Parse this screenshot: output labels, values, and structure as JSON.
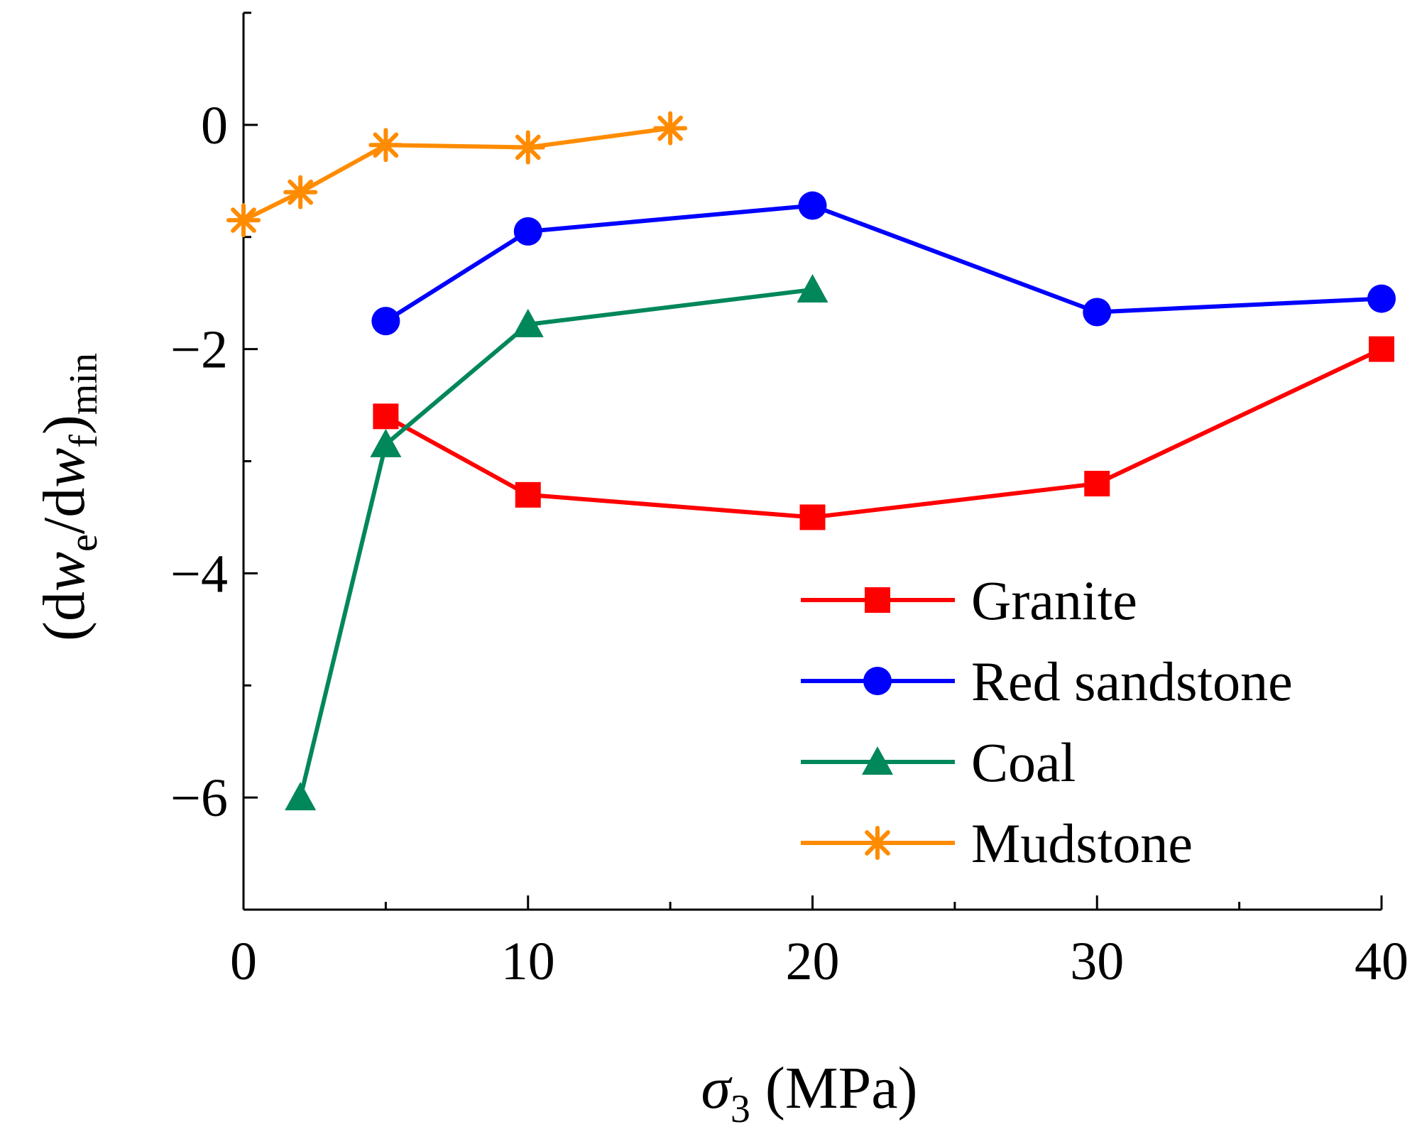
{
  "chart_data": {
    "type": "line",
    "title": "",
    "xlabel": "σ3 (MPa)",
    "xlabel_parts": {
      "symbol": "σ",
      "subscript": "3",
      "rest": " (MPa)"
    },
    "ylabel": "(dwe/dwf)min",
    "ylabel_parts": {
      "open": "(d",
      "w1": "w",
      "sub1": "e",
      "slash": "/d",
      "w2": "w",
      "sub2": "f",
      "close": ")",
      "sub3": "min"
    },
    "xlim": [
      0,
      40
    ],
    "ylim": [
      -7,
      1
    ],
    "xticks": [
      0,
      10,
      20,
      30,
      40
    ],
    "xtick_labels": [
      "0",
      "10",
      "20",
      "30",
      "40"
    ],
    "yticks_major": [
      0,
      -2,
      -4,
      -6
    ],
    "ytick_labels": [
      "0",
      "−2",
      "−4",
      "−6"
    ],
    "yticks_minor": [
      1,
      -1,
      -3,
      -5,
      -7
    ],
    "xticks_minor": [
      5,
      15,
      25,
      35
    ],
    "grid": false,
    "legend_position": "bottom-right",
    "series": [
      {
        "name": "Granite",
        "color": "#ff0000",
        "marker": "square",
        "x": [
          5,
          10,
          20,
          30,
          40
        ],
        "y": [
          -2.6,
          -3.3,
          -3.5,
          -3.2,
          -2.0
        ]
      },
      {
        "name": "Red sandstone",
        "color": "#0000ff",
        "marker": "circle",
        "x": [
          5,
          10,
          20,
          30,
          40
        ],
        "y": [
          -1.75,
          -0.95,
          -0.72,
          -1.67,
          -1.55
        ]
      },
      {
        "name": "Coal",
        "color": "#00875a",
        "marker": "triangle",
        "x": [
          2,
          5,
          10,
          20
        ],
        "y": [
          -6.0,
          -2.85,
          -1.78,
          -1.47
        ]
      },
      {
        "name": "Mudstone",
        "color": "#ff8c00",
        "marker": "asterisk",
        "x": [
          0,
          2,
          5,
          10,
          15
        ],
        "y": [
          -0.85,
          -0.6,
          -0.18,
          -0.2,
          -0.03
        ]
      }
    ]
  }
}
